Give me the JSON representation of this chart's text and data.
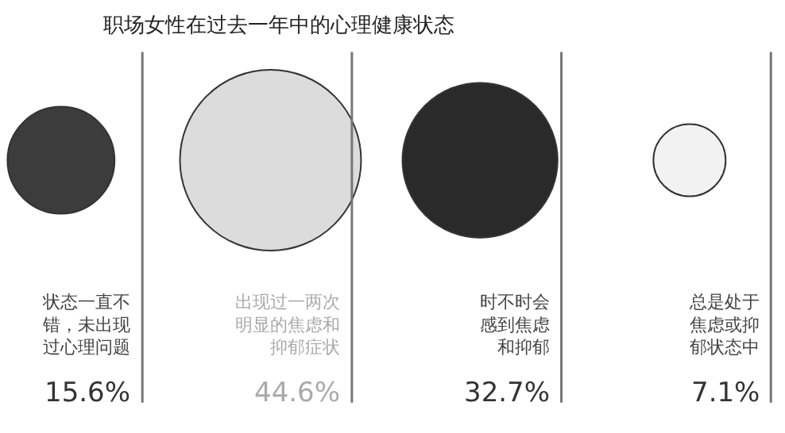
{
  "chart_data": {
    "type": "other",
    "title": "职场女性在过去一年中的心理健康状态",
    "categories": [
      "状态一直不错，未出现过心理问题",
      "出现过一两次明显的焦虑和抑郁症状",
      "时不时会感到焦虑和抑郁",
      "总是处于焦虑或抑郁状态中"
    ],
    "values": [
      15.6,
      44.6,
      32.7,
      7.1
    ],
    "colors": [
      "#3c3c3c",
      "#dcdcdc",
      "#2a2a2a",
      "#f2f2f2"
    ],
    "value_labels": [
      "15.6%",
      "44.6%",
      "32.7%",
      "7.1%"
    ]
  }
}
